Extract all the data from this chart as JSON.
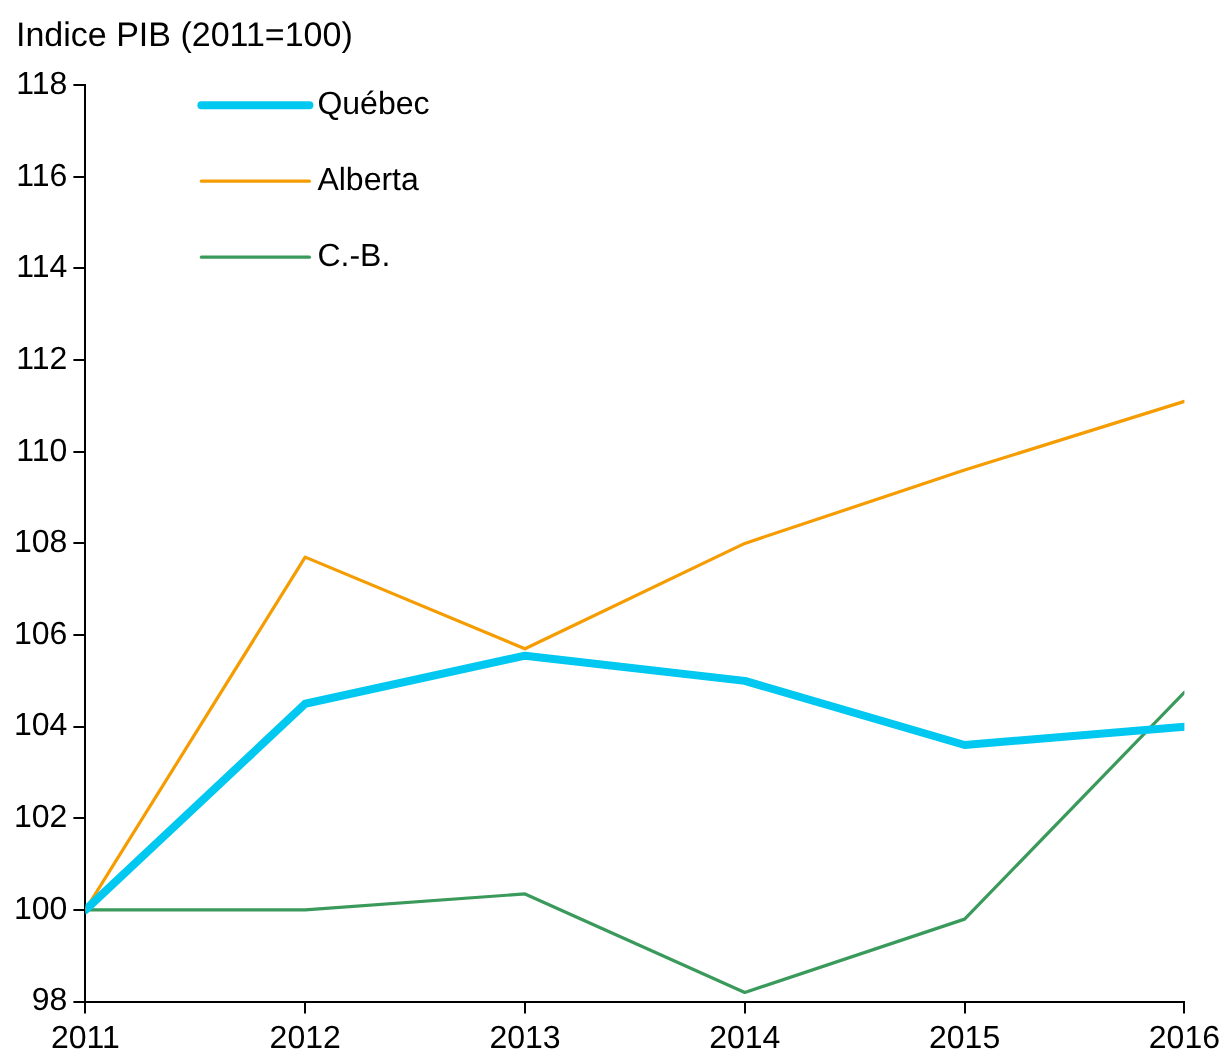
{
  "chart_data": {
    "type": "line",
    "ylabel": "Indice PIB (2011=100)",
    "x": [
      2011,
      2012,
      2013,
      2014,
      2015,
      2016
    ],
    "xlim": [
      2011,
      2016
    ],
    "xticks": [
      2011,
      2012,
      2013,
      2014,
      2015,
      2016
    ],
    "ylim": [
      98,
      118
    ],
    "yticks": [
      98,
      100,
      102,
      104,
      106,
      108,
      110,
      112,
      114,
      116,
      118
    ],
    "grid": false,
    "legend": "top left",
    "marker": "none",
    "line_style": "solid",
    "series": [
      {
        "name": "Québec",
        "color": "#00c8f0",
        "values": [
          100,
          104.5,
          105.55,
          105.0,
          103.6,
          104.0
        ]
      },
      {
        "name": "Alberta",
        "color": "#f59c00",
        "values": [
          100,
          107.7,
          105.7,
          108.0,
          109.6,
          111.1
        ]
      },
      {
        "name": "C.-B.",
        "color": "#3a9a5b",
        "values": [
          100,
          100.0,
          100.35,
          98.2,
          99.8,
          104.75
        ]
      }
    ]
  }
}
